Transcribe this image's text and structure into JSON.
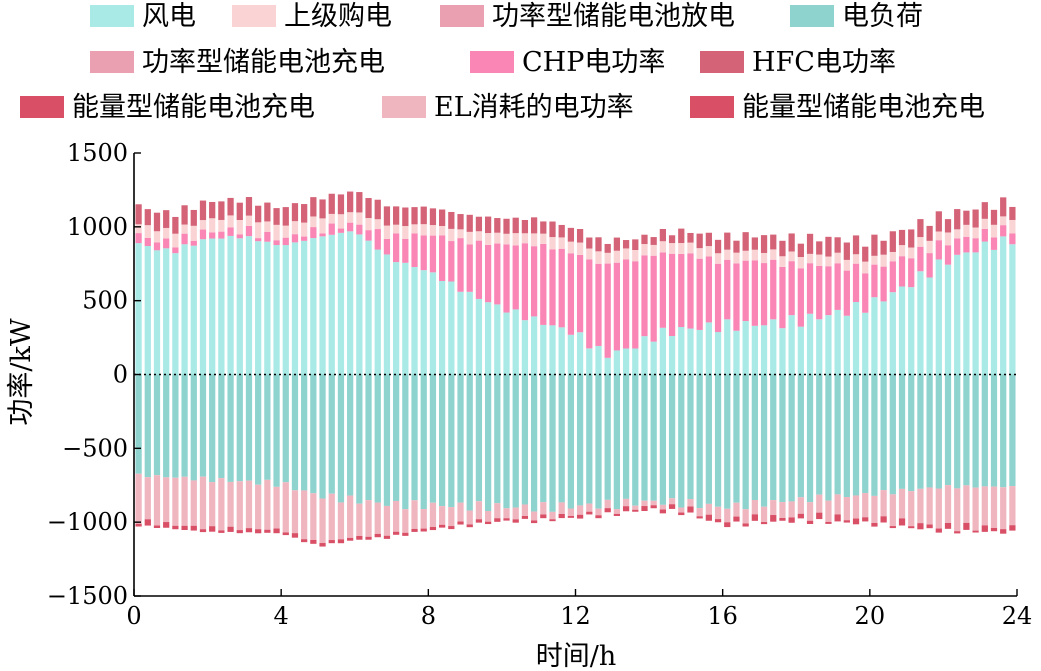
{
  "chart_data": {
    "type": "bar",
    "stacked": true,
    "x_step_h": 0.25,
    "xlabel": "时间/h",
    "ylabel": "功率/kW",
    "xlim": [
      0,
      24
    ],
    "ylim": [
      -1500,
      1500
    ],
    "x_ticks": [
      0,
      4,
      8,
      12,
      16,
      20,
      24
    ],
    "y_ticks": [
      -1500,
      -1000,
      -500,
      0,
      500,
      1000,
      1500
    ],
    "zero_line": "dotted",
    "grid": false,
    "legend_position": "top",
    "legend": [
      {
        "key": "wind",
        "name": "风电",
        "color": "#a9e9e6"
      },
      {
        "key": "grid",
        "name": "上级购电",
        "color": "#fad4d4"
      },
      {
        "key": "pes_dis",
        "name": "功率型储能电池放电",
        "color": "#eba0b1"
      },
      {
        "key": "load",
        "name": "电负荷",
        "color": "#8fd3cf"
      },
      {
        "key": "pes_ch",
        "name": "功率型储能电池充电",
        "color": "#eba0b1"
      },
      {
        "key": "chp",
        "name": "CHP电功率",
        "color": "#f986b5"
      },
      {
        "key": "hfc",
        "name": "HFC电功率",
        "color": "#d46377"
      },
      {
        "key": "ees_ch_a",
        "name": "能量型储能电池充电",
        "color": "#d84f66"
      },
      {
        "key": "el",
        "name": "EL消耗的电功率",
        "color": "#f0b6c0"
      },
      {
        "key": "ees_ch_b",
        "name": "能量型储能电池充电",
        "color": "#d84f66"
      }
    ],
    "colors": {
      "wind": "#a9e9e6",
      "grid": "#fad4d4",
      "pes_dis": "#eba0b1",
      "chp": "#f986b5",
      "hfc": "#d46377",
      "load": "#8fd3cf",
      "el": "#f0b6c0",
      "ees_ch": "#d84f66"
    },
    "series_anchors": {
      "wind": [
        [
          0,
          890
        ],
        [
          1,
          830
        ],
        [
          2,
          920
        ],
        [
          3,
          935
        ],
        [
          4,
          870
        ],
        [
          5,
          930
        ],
        [
          6,
          975
        ],
        [
          7,
          780
        ],
        [
          8,
          700
        ],
        [
          9,
          560
        ],
        [
          10,
          450
        ],
        [
          11,
          360
        ],
        [
          12,
          280
        ],
        [
          12.8,
          130
        ],
        [
          13.5,
          180
        ],
        [
          14.2,
          270
        ],
        [
          15,
          310
        ],
        [
          16,
          330
        ],
        [
          17,
          340
        ],
        [
          18,
          360
        ],
        [
          19,
          410
        ],
        [
          20,
          470
        ],
        [
          21,
          600
        ],
        [
          22,
          760
        ],
        [
          23,
          860
        ],
        [
          24,
          920
        ]
      ],
      "chp": [
        [
          0,
          60
        ],
        [
          3,
          45
        ],
        [
          6,
          50
        ],
        [
          7,
          150
        ],
        [
          8,
          250
        ],
        [
          9,
          340
        ],
        [
          10,
          430
        ],
        [
          11,
          520
        ],
        [
          12,
          540
        ],
        [
          13,
          620
        ],
        [
          14,
          560
        ],
        [
          15,
          510
        ],
        [
          16,
          430
        ],
        [
          17,
          430
        ],
        [
          18,
          380
        ],
        [
          19,
          330
        ],
        [
          20,
          240
        ],
        [
          21,
          200
        ],
        [
          22,
          130
        ],
        [
          23,
          90
        ],
        [
          24,
          70
        ]
      ],
      "grid": [
        [
          0,
          75
        ],
        [
          4,
          90
        ],
        [
          6,
          80
        ],
        [
          8,
          70
        ],
        [
          12,
          80
        ],
        [
          16,
          70
        ],
        [
          20,
          70
        ],
        [
          24,
          75
        ]
      ],
      "hfc": [
        [
          0,
          120
        ],
        [
          4,
          120
        ],
        [
          6,
          140
        ],
        [
          8,
          115
        ],
        [
          12,
          90
        ],
        [
          14,
          60
        ],
        [
          16,
          100
        ],
        [
          20,
          120
        ],
        [
          24,
          110
        ]
      ],
      "load": [
        [
          0,
          -680
        ],
        [
          4,
          -740
        ],
        [
          5,
          -820
        ],
        [
          6,
          -850
        ],
        [
          7,
          -880
        ],
        [
          9,
          -890
        ],
        [
          11,
          -900
        ],
        [
          12,
          -890
        ],
        [
          13,
          -880
        ],
        [
          14,
          -860
        ],
        [
          15,
          -870
        ],
        [
          16,
          -900
        ],
        [
          18,
          -850
        ],
        [
          20,
          -810
        ],
        [
          22,
          -760
        ],
        [
          24,
          -760
        ]
      ],
      "el": [
        [
          0,
          -310
        ],
        [
          2,
          -330
        ],
        [
          4,
          -310
        ],
        [
          5,
          -320
        ],
        [
          6,
          -250
        ],
        [
          8,
          -150
        ],
        [
          10,
          -80
        ],
        [
          12,
          -60
        ],
        [
          14,
          -30
        ],
        [
          15,
          -40
        ],
        [
          16,
          -90
        ],
        [
          18,
          -110
        ],
        [
          20,
          -170
        ],
        [
          22,
          -270
        ],
        [
          24,
          -280
        ]
      ],
      "ees_ch": [
        [
          0,
          -30
        ],
        [
          4,
          -25
        ],
        [
          8,
          -20
        ],
        [
          12,
          -20
        ],
        [
          16,
          -30
        ],
        [
          20,
          -30
        ],
        [
          24,
          -30
        ]
      ]
    }
  }
}
